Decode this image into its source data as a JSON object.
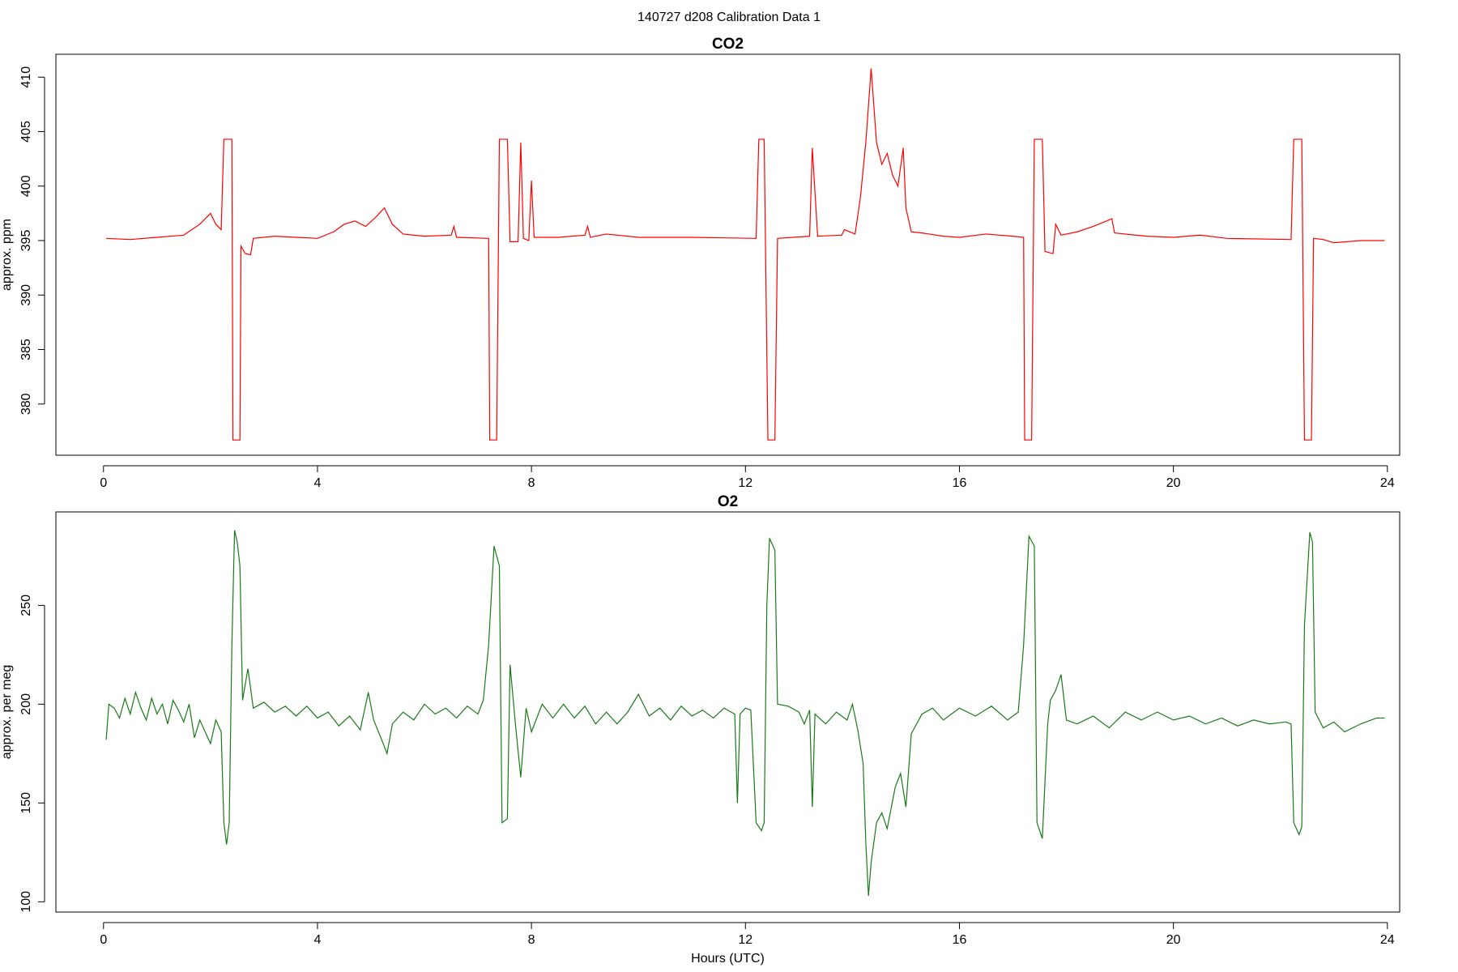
{
  "title": "140727   d208   Calibration Data 1",
  "chart_data": [
    {
      "type": "line",
      "title": "CO2",
      "y_label": "approx. ppm",
      "x": [
        0.05,
        0.5,
        1.0,
        1.5,
        1.8,
        2.0,
        2.1,
        2.2,
        2.25,
        2.4,
        2.42,
        2.55,
        2.57,
        2.65,
        2.75,
        2.8,
        3.2,
        3.6,
        4.0,
        4.3,
        4.5,
        4.7,
        4.9,
        5.1,
        5.25,
        5.4,
        5.6,
        6.0,
        6.5,
        6.55,
        6.6,
        7.2,
        7.22,
        7.35,
        7.4,
        7.55,
        7.6,
        7.75,
        7.8,
        7.85,
        7.95,
        8.0,
        8.05,
        8.5,
        9.0,
        9.05,
        9.1,
        9.4,
        10,
        11,
        12.2,
        12.25,
        12.35,
        12.42,
        12.55,
        12.6,
        13.2,
        13.25,
        13.35,
        13.8,
        13.85,
        14.05,
        14.15,
        14.25,
        14.35,
        14.45,
        14.55,
        14.65,
        14.75,
        14.85,
        14.95,
        15.0,
        15.1,
        15.3,
        15.7,
        16,
        16.5,
        17,
        17.2,
        17.22,
        17.35,
        17.4,
        17.55,
        17.6,
        17.75,
        17.8,
        17.9,
        18.2,
        18.5,
        18.85,
        18.9,
        19.5,
        20,
        20.5,
        21,
        22.2,
        22.25,
        22.4,
        22.45,
        22.58,
        22.62,
        22.8,
        23,
        23.5,
        23.95
      ],
      "series": [
        {
          "name": "CO2",
          "color": "#ff0000",
          "values": [
            395.2,
            395.1,
            395.3,
            395.5,
            396.5,
            397.5,
            396.5,
            396,
            404.3,
            404.3,
            376.7,
            376.7,
            394.5,
            393.8,
            393.7,
            395.2,
            395.4,
            395.3,
            395.2,
            395.8,
            396.5,
            396.8,
            396.3,
            397.2,
            398,
            396.5,
            395.6,
            395.4,
            395.5,
            396.3,
            395.3,
            395.2,
            376.7,
            376.7,
            404.3,
            404.3,
            394.9,
            394.9,
            404,
            395.2,
            395,
            400.5,
            395.3,
            395.3,
            395.5,
            396.3,
            395.3,
            395.6,
            395.3,
            395.3,
            395.2,
            404.3,
            404.3,
            376.7,
            376.7,
            395.2,
            395.4,
            403.5,
            395.4,
            395.5,
            396,
            395.6,
            399,
            404,
            410.8,
            404,
            402,
            403,
            401,
            400,
            403.5,
            398,
            395.8,
            395.7,
            395.4,
            395.3,
            395.6,
            395.4,
            395.3,
            376.7,
            376.7,
            404.3,
            404.3,
            394,
            393.8,
            396.5,
            395.5,
            395.8,
            396.3,
            397,
            395.7,
            395.4,
            395.3,
            395.5,
            395.2,
            395.1,
            404.3,
            404.3,
            376.7,
            376.7,
            395.2,
            395.1,
            394.8,
            395.0,
            395.0
          ]
        }
      ],
      "xlim": [
        -0.89,
        24.23
      ],
      "xticks": [
        0,
        4,
        8,
        12,
        16,
        20,
        24
      ],
      "ylim": [
        375.3,
        412.1
      ],
      "yticks": [
        380,
        385,
        390,
        395,
        400,
        405,
        410
      ]
    },
    {
      "type": "line",
      "title": "O2",
      "y_label": "approx. per meg",
      "x_label": "Hours (UTC)",
      "x": [
        0.05,
        0.1,
        0.2,
        0.3,
        0.4,
        0.5,
        0.6,
        0.7,
        0.8,
        0.9,
        1.0,
        1.1,
        1.2,
        1.3,
        1.4,
        1.5,
        1.6,
        1.7,
        1.8,
        1.9,
        2.0,
        2.1,
        2.2,
        2.25,
        2.3,
        2.35,
        2.4,
        2.45,
        2.5,
        2.55,
        2.6,
        2.7,
        2.8,
        3.0,
        3.2,
        3.4,
        3.6,
        3.8,
        4.0,
        4.2,
        4.4,
        4.6,
        4.8,
        4.95,
        5.05,
        5.2,
        5.3,
        5.4,
        5.6,
        5.8,
        6.0,
        6.2,
        6.4,
        6.6,
        6.8,
        7.0,
        7.1,
        7.2,
        7.3,
        7.4,
        7.45,
        7.55,
        7.6,
        7.7,
        7.8,
        7.9,
        8.0,
        8.2,
        8.4,
        8.6,
        8.8,
        9.0,
        9.2,
        9.4,
        9.6,
        9.8,
        10,
        10.2,
        10.4,
        10.6,
        10.8,
        11.0,
        11.2,
        11.4,
        11.6,
        11.8,
        11.85,
        11.9,
        12.0,
        12.1,
        12.2,
        12.3,
        12.35,
        12.4,
        12.45,
        12.55,
        12.6,
        12.8,
        13.0,
        13.1,
        13.2,
        13.25,
        13.3,
        13.5,
        13.7,
        13.9,
        14.0,
        14.1,
        14.2,
        14.25,
        14.3,
        14.35,
        14.45,
        14.55,
        14.65,
        14.8,
        14.9,
        15.0,
        15.1,
        15.3,
        15.5,
        15.7,
        16.0,
        16.3,
        16.6,
        16.9,
        17.1,
        17.2,
        17.3,
        17.4,
        17.45,
        17.55,
        17.65,
        17.7,
        17.8,
        17.9,
        18.0,
        18.2,
        18.5,
        18.8,
        19.1,
        19.4,
        19.7,
        20.0,
        20.3,
        20.6,
        20.9,
        21.2,
        21.5,
        21.8,
        22.1,
        22.2,
        22.25,
        22.35,
        22.4,
        22.45,
        22.55,
        22.6,
        22.65,
        22.8,
        23.0,
        23.2,
        23.5,
        23.8,
        23.95
      ],
      "series": [
        {
          "name": "O2",
          "color": "#1a7a1a",
          "values": [
            182,
            200,
            198,
            193,
            203,
            195,
            206,
            198,
            192,
            203,
            195,
            200,
            190,
            202,
            197,
            191,
            200,
            183,
            192,
            186,
            180,
            192,
            186,
            140,
            129,
            140,
            230,
            288,
            282,
            270,
            202,
            218,
            198,
            201,
            196,
            199,
            194,
            199,
            193,
            196,
            189,
            194,
            187,
            206,
            192,
            182,
            175,
            190,
            196,
            192,
            200,
            195,
            198,
            193,
            199,
            195,
            202,
            230,
            280,
            270,
            140,
            142,
            220,
            190,
            163,
            198,
            186,
            200,
            193,
            200,
            193,
            199,
            190,
            196,
            190,
            196,
            205,
            194,
            198,
            192,
            199,
            194,
            197,
            193,
            198,
            195,
            150,
            195,
            198,
            197,
            140,
            136,
            140,
            250,
            284,
            278,
            200,
            199,
            196,
            190,
            197,
            148,
            195,
            190,
            196,
            192,
            200,
            187,
            170,
            130,
            103,
            120,
            140,
            145,
            137,
            158,
            165,
            148,
            185,
            195,
            198,
            192,
            198,
            194,
            199,
            192,
            196,
            230,
            285,
            280,
            140,
            132,
            190,
            202,
            207,
            215,
            192,
            190,
            194,
            188,
            196,
            192,
            196,
            192,
            194,
            190,
            193,
            189,
            192,
            190,
            191,
            190,
            140,
            134,
            138,
            240,
            287,
            282,
            196,
            188,
            191,
            186,
            190,
            193,
            193
          ]
        }
      ],
      "xlim": [
        -0.89,
        24.23
      ],
      "xticks": [
        0,
        4,
        8,
        12,
        16,
        20,
        24
      ],
      "ylim": [
        94.8,
        297.3
      ],
      "yticks": [
        100,
        150,
        200,
        250
      ]
    }
  ]
}
